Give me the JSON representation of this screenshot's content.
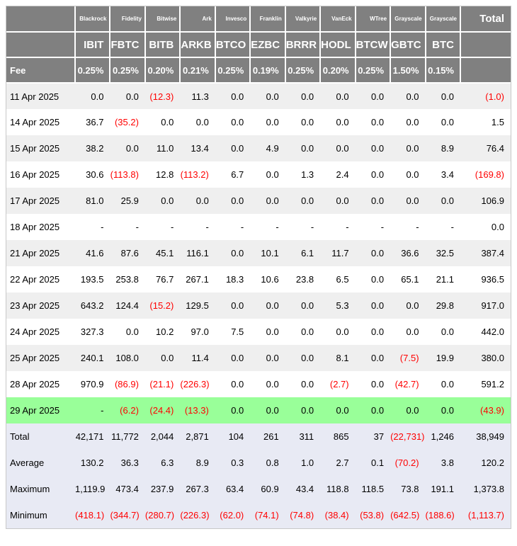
{
  "colors": {
    "header_bg": "#808080",
    "header_text": "#ffffff",
    "negative_text": "#ff0000",
    "stripe_bg": "#efefef",
    "highlight_row_bg": "#99ff99",
    "summary_bg": "#e8eaf4",
    "table_border": "#c8c8c8"
  },
  "table": {
    "fee_label": "Fee",
    "total_label": "Total",
    "providers": [
      "Blackrock",
      "Fidelity",
      "Bitwise",
      "Ark",
      "Invesco",
      "Franklin",
      "Valkyrie",
      "VanEck",
      "WTree",
      "Grayscale",
      "Grayscale"
    ],
    "tickers": [
      "IBIT",
      "FBTC",
      "BITB",
      "ARKB",
      "BTCO",
      "EZBC",
      "BRRR",
      "HODL",
      "BTCW",
      "GBTC",
      "BTC"
    ],
    "fees": [
      "0.25%",
      "0.25%",
      "0.20%",
      "0.21%",
      "0.25%",
      "0.19%",
      "0.25%",
      "0.20%",
      "0.25%",
      "1.50%",
      "0.15%"
    ],
    "rows": [
      {
        "date": "11 Apr 2025",
        "values": [
          "0.0",
          "0.0",
          "(12.3)",
          "11.3",
          "0.0",
          "0.0",
          "0.0",
          "0.0",
          "0.0",
          "0.0",
          "0.0"
        ],
        "total": "(1.0)",
        "highlight": false
      },
      {
        "date": "14 Apr 2025",
        "values": [
          "36.7",
          "(35.2)",
          "0.0",
          "0.0",
          "0.0",
          "0.0",
          "0.0",
          "0.0",
          "0.0",
          "0.0",
          "0.0"
        ],
        "total": "1.5",
        "highlight": false
      },
      {
        "date": "15 Apr 2025",
        "values": [
          "38.2",
          "0.0",
          "11.0",
          "13.4",
          "0.0",
          "4.9",
          "0.0",
          "0.0",
          "0.0",
          "0.0",
          "8.9"
        ],
        "total": "76.4",
        "highlight": false
      },
      {
        "date": "16 Apr 2025",
        "values": [
          "30.6",
          "(113.8)",
          "12.8",
          "(113.2)",
          "6.7",
          "0.0",
          "1.3",
          "2.4",
          "0.0",
          "0.0",
          "3.4"
        ],
        "total": "(169.8)",
        "highlight": false
      },
      {
        "date": "17 Apr 2025",
        "values": [
          "81.0",
          "25.9",
          "0.0",
          "0.0",
          "0.0",
          "0.0",
          "0.0",
          "0.0",
          "0.0",
          "0.0",
          "0.0"
        ],
        "total": "106.9",
        "highlight": false
      },
      {
        "date": "18 Apr 2025",
        "values": [
          "-",
          "-",
          "-",
          "-",
          "-",
          "-",
          "-",
          "-",
          "-",
          "-",
          "-"
        ],
        "total": "0.0",
        "highlight": false
      },
      {
        "date": "21 Apr 2025",
        "values": [
          "41.6",
          "87.6",
          "45.1",
          "116.1",
          "0.0",
          "10.1",
          "6.1",
          "11.7",
          "0.0",
          "36.6",
          "32.5"
        ],
        "total": "387.4",
        "highlight": false
      },
      {
        "date": "22 Apr 2025",
        "values": [
          "193.5",
          "253.8",
          "76.7",
          "267.1",
          "18.3",
          "10.6",
          "23.8",
          "6.5",
          "0.0",
          "65.1",
          "21.1"
        ],
        "total": "936.5",
        "highlight": false
      },
      {
        "date": "23 Apr 2025",
        "values": [
          "643.2",
          "124.4",
          "(15.2)",
          "129.5",
          "0.0",
          "0.0",
          "0.0",
          "5.3",
          "0.0",
          "0.0",
          "29.8"
        ],
        "total": "917.0",
        "highlight": false
      },
      {
        "date": "24 Apr 2025",
        "values": [
          "327.3",
          "0.0",
          "10.2",
          "97.0",
          "7.5",
          "0.0",
          "0.0",
          "0.0",
          "0.0",
          "0.0",
          "0.0"
        ],
        "total": "442.0",
        "highlight": false
      },
      {
        "date": "25 Apr 2025",
        "values": [
          "240.1",
          "108.0",
          "0.0",
          "11.4",
          "0.0",
          "0.0",
          "0.0",
          "8.1",
          "0.0",
          "(7.5)",
          "19.9"
        ],
        "total": "380.0",
        "highlight": false
      },
      {
        "date": "28 Apr 2025",
        "values": [
          "970.9",
          "(86.9)",
          "(21.1)",
          "(226.3)",
          "0.0",
          "0.0",
          "0.0",
          "(2.7)",
          "0.0",
          "(42.7)",
          "0.0"
        ],
        "total": "591.2",
        "highlight": false
      },
      {
        "date": "29 Apr 2025",
        "values": [
          "-",
          "(6.2)",
          "(24.4)",
          "(13.3)",
          "0.0",
          "0.0",
          "0.0",
          "0.0",
          "0.0",
          "0.0",
          "0.0"
        ],
        "total": "(43.9)",
        "highlight": true
      }
    ],
    "summary": [
      {
        "label": "Total",
        "values": [
          "42,171",
          "11,772",
          "2,044",
          "2,871",
          "104",
          "261",
          "311",
          "865",
          "37",
          "(22,731)",
          "1,246"
        ],
        "total": "38,949"
      },
      {
        "label": "Average",
        "values": [
          "130.2",
          "36.3",
          "6.3",
          "8.9",
          "0.3",
          "0.8",
          "1.0",
          "2.7",
          "0.1",
          "(70.2)",
          "3.8"
        ],
        "total": "120.2"
      },
      {
        "label": "Maximum",
        "values": [
          "1,119.9",
          "473.4",
          "237.9",
          "267.3",
          "63.4",
          "60.9",
          "43.4",
          "118.8",
          "118.5",
          "73.8",
          "191.1"
        ],
        "total": "1,373.8"
      },
      {
        "label": "Minimum",
        "values": [
          "(418.1)",
          "(344.7)",
          "(280.7)",
          "(226.3)",
          "(62.0)",
          "(74.1)",
          "(74.8)",
          "(38.4)",
          "(53.8)",
          "(642.5)",
          "(188.6)"
        ],
        "total": "(1,113.7)"
      }
    ]
  }
}
